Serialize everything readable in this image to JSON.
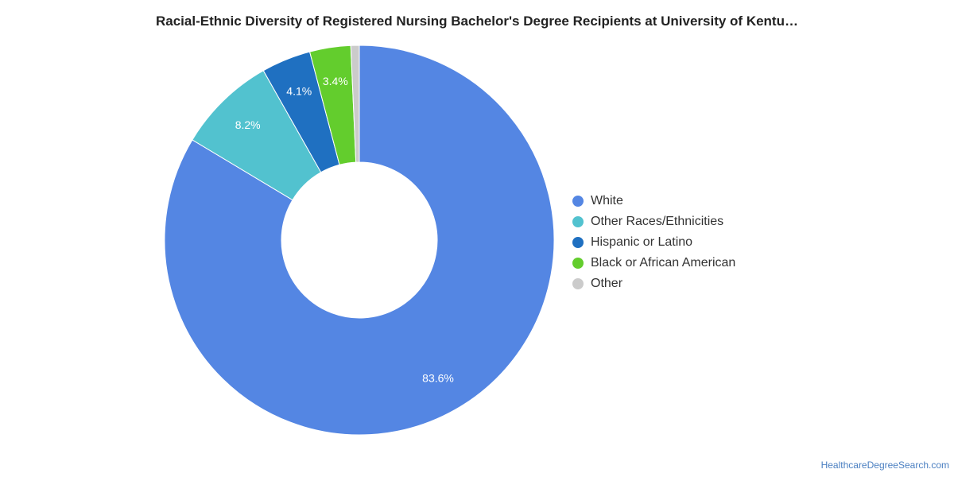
{
  "chart_data": {
    "type": "pie",
    "title": "Racial-Ethnic Diversity of Registered Nursing Bachelor's Degree Recipients at University of Kentu…",
    "donut": true,
    "legend_position": "right",
    "slices": [
      {
        "name": "White",
        "value": 83.6,
        "label": "83.6%",
        "color": "#5486e3"
      },
      {
        "name": "Other Races/Ethnicities",
        "value": 8.2,
        "label": "8.2%",
        "color": "#52c2cf"
      },
      {
        "name": "Hispanic or Latino",
        "value": 4.1,
        "label": "4.1%",
        "color": "#1f70c1"
      },
      {
        "name": "Black or African American",
        "value": 3.4,
        "label": "3.4%",
        "color": "#63cd2d"
      },
      {
        "name": "Other",
        "value": 0.7,
        "label": "",
        "color": "#cbcbcb"
      }
    ]
  },
  "footer": {
    "source": "HealthcareDegreeSearch.com"
  }
}
